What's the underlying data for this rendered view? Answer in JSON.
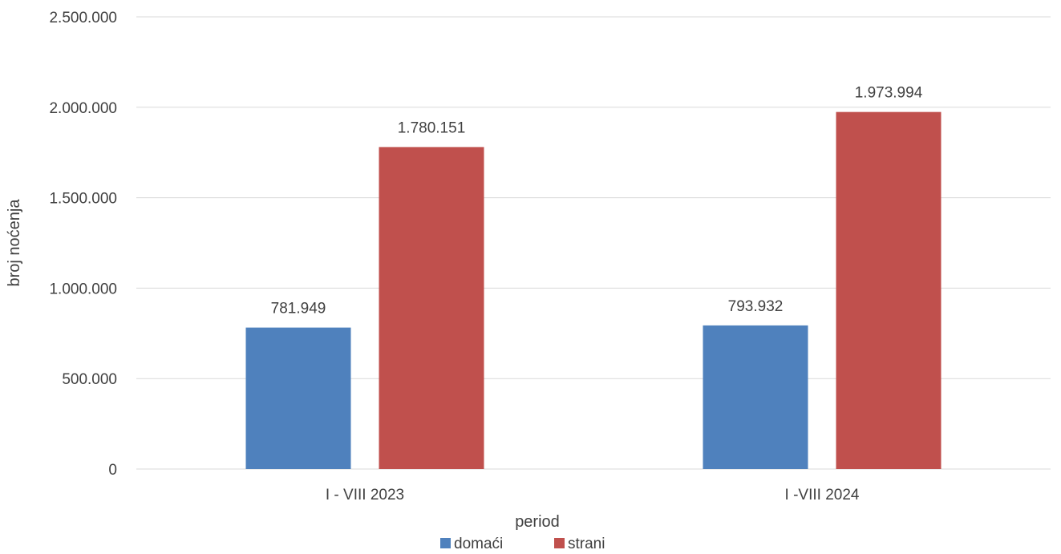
{
  "chart_data": {
    "type": "bar",
    "title": "",
    "xlabel": "period",
    "ylabel": "broj noćenja",
    "categories": [
      "I - VIII 2023",
      "I -VIII 2024"
    ],
    "series": [
      {
        "name": "domaći",
        "color": "#4F81BD",
        "values": [
          781949,
          793932
        ],
        "labels": [
          "781.949",
          "793.932"
        ]
      },
      {
        "name": "strani",
        "color": "#C0504D",
        "values": [
          1780151,
          1973994
        ],
        "labels": [
          "1.780.151",
          "1.973.994"
        ]
      }
    ],
    "ylim": [
      0,
      2500000
    ],
    "yticks": [
      0,
      500000,
      1000000,
      1500000,
      2000000,
      2500000
    ],
    "ytick_labels": [
      "0",
      "500.000",
      "1.000.000",
      "1.500.000",
      "2.000.000",
      "2.500.000"
    ],
    "grid": true,
    "gridline_color": "#D9D9D9",
    "legend_position": "bottom"
  }
}
